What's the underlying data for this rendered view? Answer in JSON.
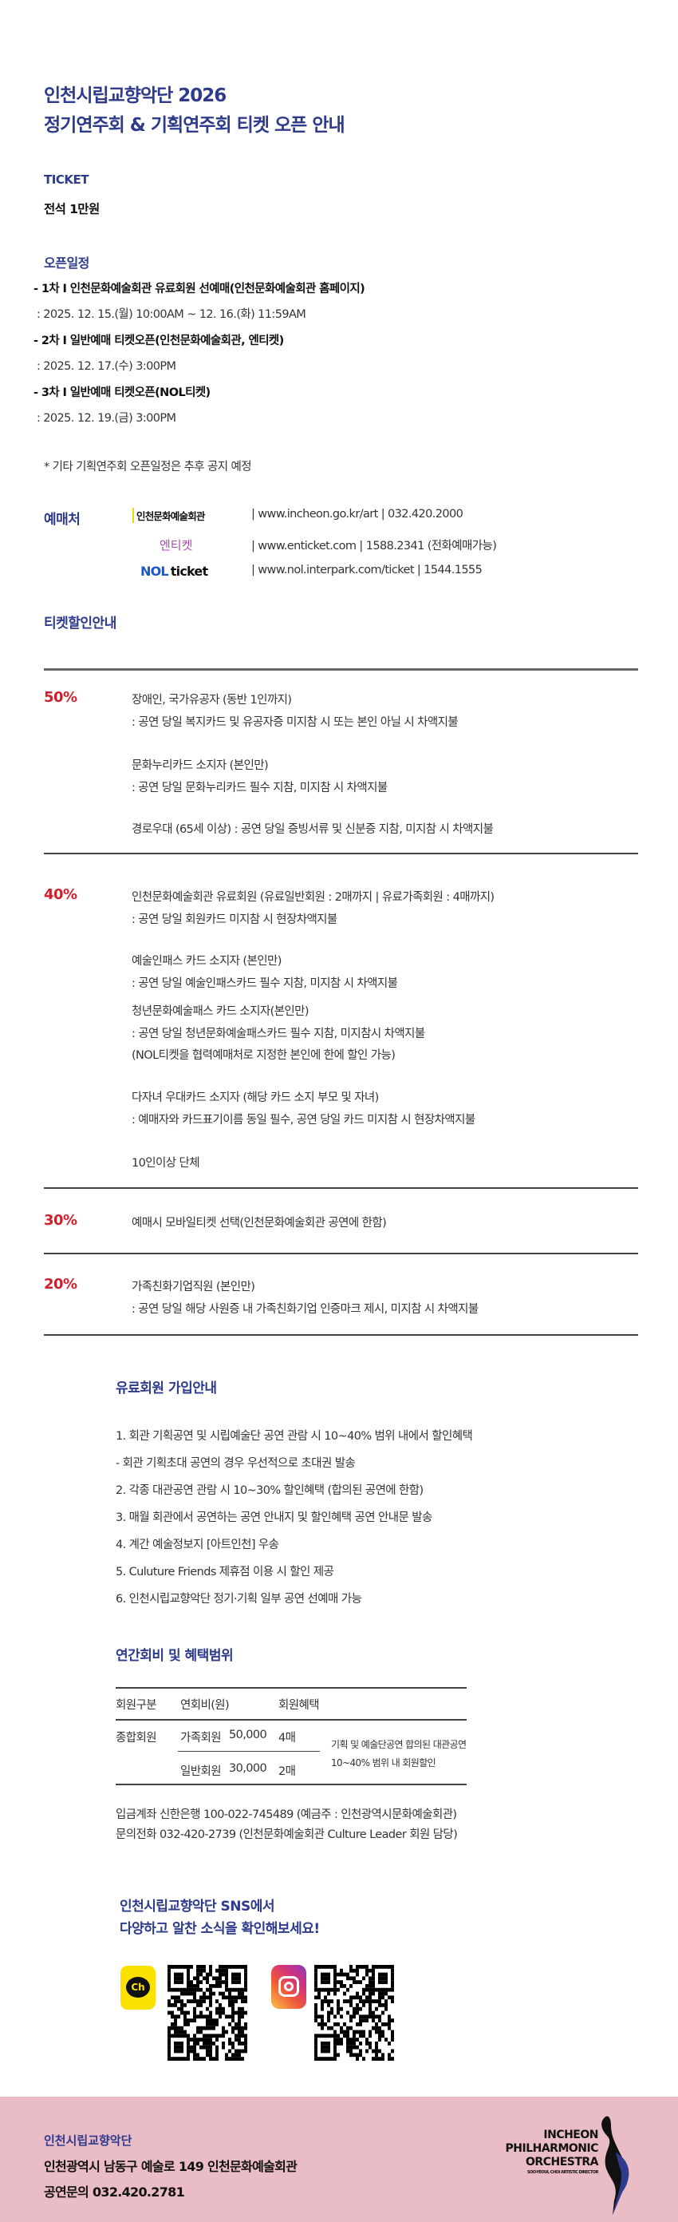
{
  "title": {
    "line1": "인천시립교향악단 2026",
    "line2": "정기연주회 & 기획연주회 티켓 오픈 안내"
  },
  "ticket": {
    "heading": "TICKET",
    "price": "전석 1만원"
  },
  "schedule": {
    "heading": "오픈일정",
    "items": [
      {
        "label": "- 1차 I 인천문화예술회관 유료회원 선예매(인천문화예술회관 홈페이지)",
        "date": ": 2025. 12. 15.(월) 10:00AM ~ 12. 16.(화) 11:59AM"
      },
      {
        "label": "- 2차 I 일반예매 티켓오픈(인천문화예술회관, 엔티켓)",
        "date": ": 2025. 12. 17.(수) 3:00PM"
      },
      {
        "label": "- 3차 I 일반예매 티켓오픈(NOL티켓)",
        "date": ": 2025. 12. 19.(금) 3:00PM"
      }
    ],
    "note": "* 기타 기획연주회 오픈일정은 추후 공지 예정"
  },
  "vendors": {
    "heading": "예매처",
    "items": [
      {
        "logo": "인천문화예술회관",
        "info": "| www.incheon.go.kr/art | 032.420.2000"
      },
      {
        "logo": "엔티켓",
        "info": "| www.enticket.com | 1588.2341 (전화예매가능)"
      },
      {
        "logo_a": "NOL",
        "logo_b": "ticket",
        "info": "| www.nol.interpark.com/ticket | 1544.1555"
      }
    ]
  },
  "discount": {
    "heading": "티켓할인안내",
    "groups": [
      {
        "pct": "50%",
        "lines": [
          "장애인, 국가유공자 (동반 1인까지)",
          ": 공연 당일 복지카드 및 유공자증 미지참 시 또는 본인 아닐 시 차액지불",
          "문화누리카드 소지자 (본인만)",
          ": 공연 당일 문화누리카드 필수 지참, 미지참 시 차액지불",
          "경로우대 (65세 이상) : 공연 당일 증빙서류 및 신분증 지참, 미지참 시 차액지불"
        ]
      },
      {
        "pct": "40%",
        "lines": [
          "인천문화예술회관 유료회원 (유료일반회원 : 2매까지 | 유료가족회원 : 4매까지)",
          ": 공연 당일 회원카드 미지참 시 현장차액지불",
          "예술인패스 카드 소지자 (본인만)",
          ": 공연 당일 예술인패스카드 필수 지참, 미지참 시 차액지불",
          "청년문화예술패스 카드 소지자(본인만)",
          ": 공연 당일 청년문화예술패스카드 필수 지참, 미지참시 차액지불",
          "(NOL티켓을 협력예매처로 지정한 본인에 한에 할인 가능)",
          "다자녀 우대카드 소지자 (해당 카드 소지 부모 및 자녀)",
          ": 예매자와 카드표기이름 동일 필수, 공연 당일 카드 미지참 시 현장차액지불",
          "10인이상 단체"
        ]
      },
      {
        "pct": "30%",
        "lines": [
          "예매시 모바일티켓 선택(인천문화예술회관 공연에 한함)"
        ]
      },
      {
        "pct": "20%",
        "lines": [
          "가족친화기업직원 (본인만)",
          ": 공연 당일 해당 사원증 내 가족친화기업 인증마크 제시, 미지참 시 차액지불"
        ]
      }
    ]
  },
  "membership": {
    "heading": "유료회원 가입안내",
    "items": [
      "1. 회관 기획공연 및 시립예술단 공연 관람 시 10~40% 범위 내에서 할인혜택",
      "- 회관 기획초대 공연의 경우 우선적으로 초대권 발송",
      "2. 각종 대관공연 관람 시 10~30% 할인혜택 (합의된 공연에 한함)",
      "3. 매월 회관에서 공연하는 공연 안내지 및 할인혜택 공연 안내문 발송",
      "4. 계간 예술정보지 [아트인천] 우송",
      "5. Culuture Friends 제휴점 이용 시 할인 제공",
      "6. 인천시립교향악단 정기·기획 일부 공연 선예매 가능"
    ]
  },
  "fees": {
    "heading": "연간회비 및 혜택범위",
    "headers": [
      "회원구분",
      "연회비(원)",
      "회원혜택"
    ],
    "group": "종합회원",
    "rows": [
      {
        "type": "가족회원",
        "fee": "50,000",
        "tickets": "4매"
      },
      {
        "type": "일반회원",
        "fee": "30,000",
        "tickets": "2매"
      }
    ],
    "benefit": [
      "기획 및 예술단공연 합의된 대관공연",
      "10~40% 범위 내 회원할인"
    ],
    "account": "입금계좌 신한은행 100-022-745489 (예금주 : 인천광역시문화예술회관)",
    "contact": "문의전화 032-420-2739 (인천문화예술회관 Culture Leader 회원 담당)"
  },
  "sns": {
    "line1": "인천시립교향악단 SNS에서",
    "line2": "다양하고 알찬 소식을 확인해보세요!",
    "kakao_label": "Ch",
    "icons": [
      "kakao-channel-icon",
      "instagram-icon"
    ]
  },
  "footer": {
    "org": "인천시립교향악단",
    "address": "인천광역시 남동구 예술로 149 인천문화예술회관",
    "phone": "공연문의 032.420.2781",
    "logo": {
      "l1": "INCHEON",
      "l2": "PHILHARMONIC",
      "l3": "ORCHESTRA",
      "l4": "SOO-YEOUL CHOI ARTISTIC DIRECTOR"
    },
    "bg": "#eabcc5"
  },
  "colors": {
    "navy": "#2e3a8c",
    "red": "#d0202a"
  }
}
